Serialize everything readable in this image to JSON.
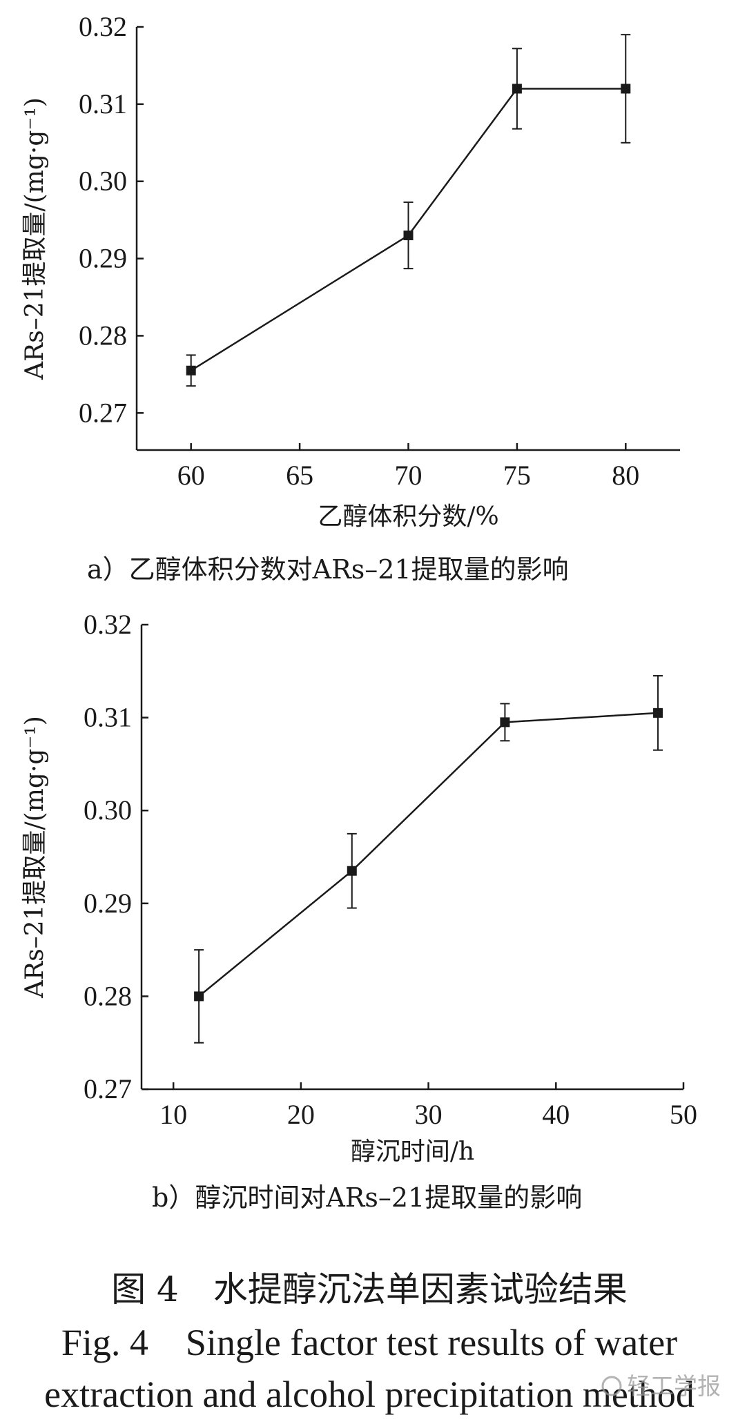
{
  "chart_data": [
    {
      "type": "line",
      "x": [
        60,
        70,
        75,
        80
      ],
      "series": [
        {
          "values": [
            0.2755,
            0.293,
            0.312,
            0.312
          ],
          "errors": [
            0.002,
            0.0043,
            0.0052,
            0.007
          ]
        }
      ],
      "xticks": [
        "60",
        "65",
        "70",
        "75",
        "80"
      ],
      "yticks": [
        "0.27",
        "0.28",
        "0.29",
        "0.30",
        "0.31",
        "0.32"
      ],
      "xlim": [
        57.5,
        82.5
      ],
      "ylim": [
        0.2652,
        0.32
      ],
      "xlabel": "乙醇体积分数/%",
      "ylabel": "ARs–21提取量/(mg·g⁻¹)",
      "caption": "a）乙醇体积分数对ARs–21提取量的影响",
      "grid": false,
      "legend": "none",
      "marker": "square"
    },
    {
      "type": "line",
      "x": [
        12,
        24,
        36,
        48
      ],
      "series": [
        {
          "values": [
            0.28,
            0.2935,
            0.3095,
            0.3105
          ],
          "errors": [
            0.005,
            0.004,
            0.002,
            0.004
          ]
        }
      ],
      "xticks": [
        "10",
        "20",
        "30",
        "40",
        "50"
      ],
      "yticks": [
        "0.27",
        "0.28",
        "0.29",
        "0.30",
        "0.31",
        "0.32"
      ],
      "xlim": [
        7.5,
        50
      ],
      "ylim": [
        0.27,
        0.32
      ],
      "xlabel": "醇沉时间/h",
      "ylabel": "ARs–21提取量/(mg·g⁻¹)",
      "caption": "b）醇沉时间对ARs–21提取量的影响",
      "grid": false,
      "legend": "none",
      "marker": "square"
    }
  ],
  "figure": {
    "title_cn": "图 4　水提醇沉法单因素试验结果",
    "title_en_line1": "Fig. 4　Single factor test results of water",
    "title_en_line2": "extraction and alcohol precipitation method",
    "watermark": "轻工学报"
  }
}
